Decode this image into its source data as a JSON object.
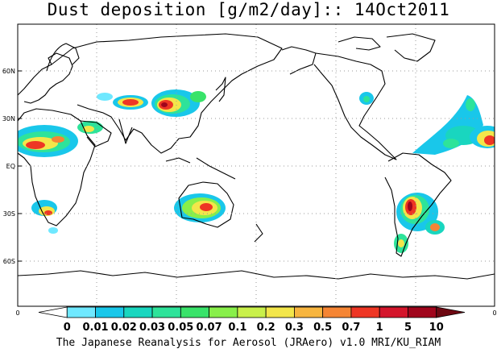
{
  "title": "Dust deposition [g/m2/day]:: 14Oct2011",
  "footer": "The Japanese Reanalysis for Aerosol (JRAero) v1.0 MRI/KU_RIAM",
  "lat_ticks": [
    "60N",
    "30N",
    "EQ",
    "30S",
    "60S"
  ],
  "longitude_ticks": [
    "0",
    "0"
  ],
  "colorbar": {
    "levels": [
      "0",
      "0.01",
      "0.02",
      "0.03",
      "0.05",
      "0.07",
      "0.1",
      "0.2",
      "0.3",
      "0.5",
      "0.7",
      "1",
      "5",
      "10"
    ],
    "colors": [
      "#ffffff",
      "#6fe8ff",
      "#19c7ea",
      "#19d6bf",
      "#2ee39a",
      "#39e36a",
      "#88ef4a",
      "#c9f04a",
      "#f3e64a",
      "#f7b53f",
      "#f58534",
      "#ee3624",
      "#d4152b",
      "#a0051c",
      "#6e0812"
    ]
  },
  "map": {
    "projection": "cylindrical equidistant, centered 180",
    "grid": "dotted, every 30 degrees",
    "plumes": [
      {
        "region": "Sahara / North Africa",
        "level": 11
      },
      {
        "region": "Arabian Peninsula",
        "level": 5
      },
      {
        "region": "Taklimakan",
        "level": 11
      },
      {
        "region": "Gobi / North China",
        "level": 12
      },
      {
        "region": "Central Asia",
        "level": 7
      },
      {
        "region": "Australia",
        "level": 11
      },
      {
        "region": "Southern Africa",
        "level": 10
      },
      {
        "region": "Argentina",
        "level": 12
      },
      {
        "region": "Patagonia",
        "level": 9
      },
      {
        "region": "US Great Plains",
        "level": 5
      },
      {
        "region": "Tropical Atlantic",
        "level": 7
      },
      {
        "region": "Sahel",
        "level": 12
      }
    ]
  }
}
